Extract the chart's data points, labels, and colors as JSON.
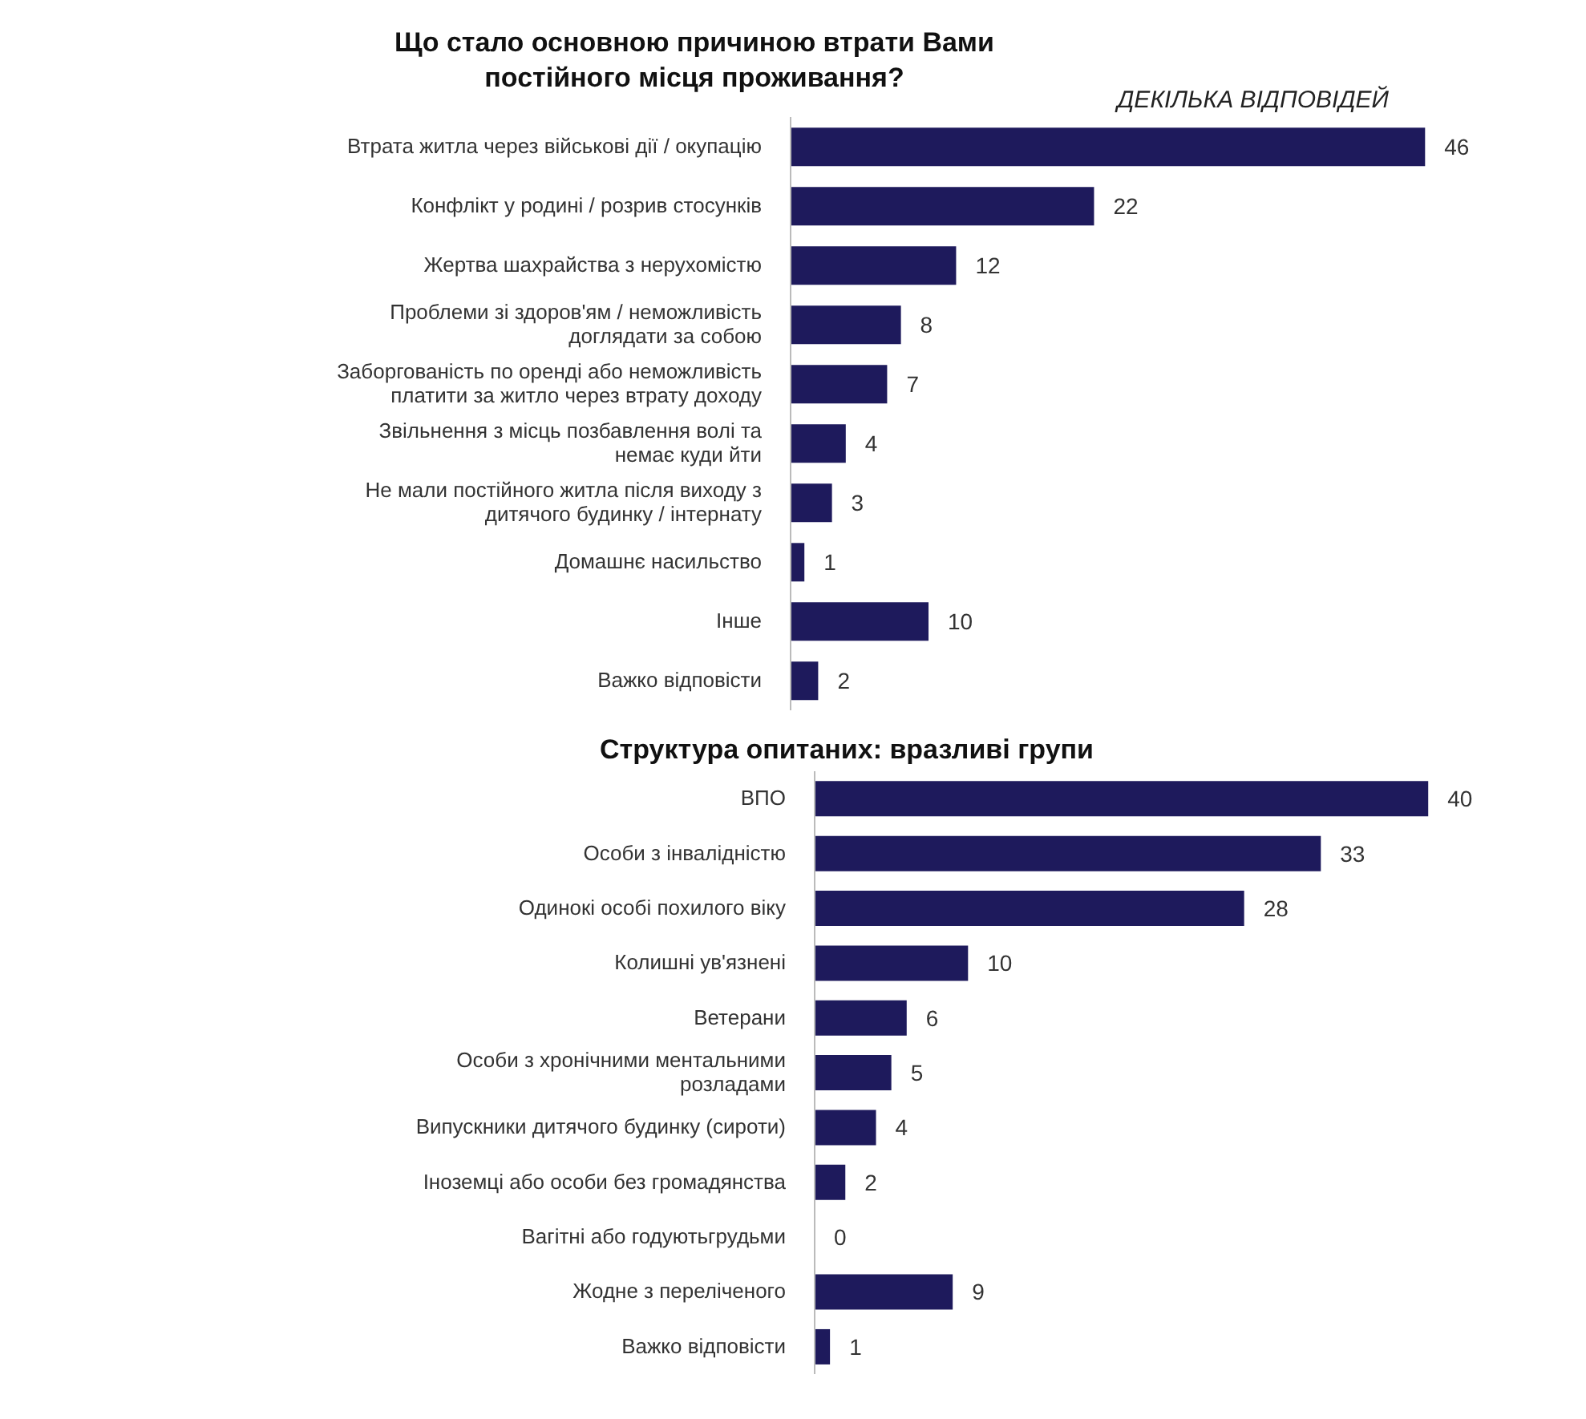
{
  "chart_data": [
    {
      "type": "bar",
      "orientation": "horizontal",
      "title": "Що стало основною причиною втрати Вами постійного місця проживання?",
      "subtitle": "ДЕКІЛЬКА ВІДПОВІДЕЙ",
      "categories": [
        "Втрата житла через військові дії / окупацію",
        "Конфлікт у родині / розрив стосунків",
        "Жертва шахрайства з нерухомістю",
        "Проблеми зі здоров'ям / неможливість доглядати за собою",
        "Заборгованість по оренді або неможливість платити за житло через втрату доходу",
        "Звільнення з місць позбавлення волі та немає куди йти",
        "Не мали постійного житла після виходу з дитячого будинку / інтернату",
        "Домашнє насильство",
        "Інше",
        "Важко відповісти"
      ],
      "values": [
        46,
        22,
        12,
        8,
        7,
        4,
        3,
        1,
        10,
        2
      ],
      "color": "#1e1a5c",
      "data_labels": true,
      "tick_labels": "y"
    },
    {
      "type": "bar",
      "orientation": "horizontal",
      "title": "Структура опитаних: вразливі групи",
      "categories": [
        "ВПО",
        "Особи з інвалідністю",
        "Одинокі особі похилого віку",
        "Колишні ув'язнені",
        "Ветерани",
        "Особи з хронічними ментальними розладами",
        "Випускники дитячого будинку (сироти)",
        "Іноземці або особи без громадянства",
        "Вагітні або годуютьгрудьми",
        "Жодне з переліченого",
        "Важко відповісти"
      ],
      "values": [
        40,
        33,
        28,
        10,
        6,
        5,
        4,
        2,
        0,
        9,
        1
      ],
      "color": "#1e1a5c",
      "data_labels": true,
      "tick_labels": "y"
    }
  ]
}
